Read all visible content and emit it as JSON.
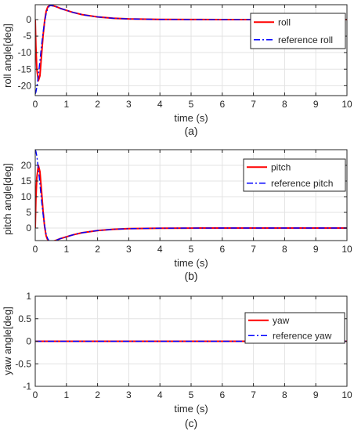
{
  "chart_data": [
    {
      "type": "line",
      "panel_label": "(a)",
      "xlabel": "time (s)",
      "ylabel": "roll angle[deg]",
      "xlim": [
        0,
        10
      ],
      "ylim": [
        -23,
        4.5
      ],
      "xticks": [
        0,
        1,
        2,
        3,
        4,
        5,
        6,
        7,
        8,
        9,
        10
      ],
      "yticks": [
        0,
        -5,
        -10,
        -15,
        -20
      ],
      "grid": true,
      "legend_position": "top-right",
      "series": [
        {
          "name": "roll",
          "style": "solid",
          "color": "#ff0000",
          "x": [
            0,
            0.02,
            0.05,
            0.1,
            0.15,
            0.2,
            0.25,
            0.3,
            0.35,
            0.4,
            0.45,
            0.5,
            0.55,
            0.6,
            0.7,
            0.8,
            1.0,
            1.2,
            1.5,
            2.0,
            2.5,
            3.0,
            4.0,
            5.0,
            6.0,
            7.0,
            8.0,
            9.0,
            10.0
          ],
          "y": [
            0,
            -8,
            -15,
            -18.5,
            -17,
            -11,
            -5,
            -0.5,
            2.5,
            3.8,
            4.2,
            4.3,
            4.2,
            4.1,
            3.8,
            3.4,
            2.8,
            2.2,
            1.5,
            0.8,
            0.4,
            0.2,
            0.05,
            0.02,
            0,
            0,
            0,
            0,
            0
          ]
        },
        {
          "name": "reference roll",
          "style": "dashdot",
          "color": "#0000ff",
          "x": [
            0,
            0.02,
            0.05,
            0.1,
            0.15,
            0.2,
            0.25,
            0.3,
            0.35,
            0.4,
            0.45,
            0.5,
            0.55,
            0.6,
            0.7,
            0.8,
            1.0,
            1.2,
            1.5,
            2.0,
            2.5,
            3.0,
            4.0,
            5.0,
            6.0,
            7.0,
            8.0,
            9.0,
            10.0
          ],
          "y": [
            -22.5,
            -22,
            -20.5,
            -17,
            -12.5,
            -8,
            -4,
            -0.8,
            1.8,
            3.3,
            4.1,
            4.3,
            4.2,
            4.1,
            3.8,
            3.4,
            2.8,
            2.2,
            1.5,
            0.8,
            0.4,
            0.2,
            0.05,
            0.02,
            0,
            0,
            0,
            0,
            0
          ]
        }
      ]
    },
    {
      "type": "line",
      "panel_label": "(b)",
      "xlabel": "time (s)",
      "ylabel": "pitch angle[deg]",
      "xlim": [
        0,
        10
      ],
      "ylim": [
        -4,
        25
      ],
      "xticks": [
        0,
        1,
        2,
        3,
        4,
        5,
        6,
        7,
        8,
        9,
        10
      ],
      "yticks": [
        20,
        15,
        10,
        5,
        0
      ],
      "grid": true,
      "legend_position": "top-right",
      "series": [
        {
          "name": "pitch",
          "style": "solid",
          "color": "#ff0000",
          "x": [
            0,
            0.02,
            0.05,
            0.1,
            0.15,
            0.2,
            0.25,
            0.3,
            0.35,
            0.4,
            0.45,
            0.5,
            0.55,
            0.6,
            0.7,
            0.8,
            1.0,
            1.2,
            1.5,
            2.0,
            2.5,
            3.0,
            4.0,
            5.0,
            6.0,
            7.0,
            8.0,
            9.0,
            10.0
          ],
          "y": [
            0,
            9,
            16,
            20,
            18,
            12,
            5.5,
            0.5,
            -2.5,
            -3.8,
            -4.2,
            -4.3,
            -4.2,
            -4.1,
            -3.8,
            -3.4,
            -2.8,
            -2.2,
            -1.5,
            -0.8,
            -0.4,
            -0.2,
            -0.05,
            -0.02,
            0,
            0,
            0,
            0,
            0
          ]
        },
        {
          "name": "reference pitch",
          "style": "dashdot",
          "color": "#0000ff",
          "x": [
            0,
            0.02,
            0.05,
            0.1,
            0.15,
            0.2,
            0.25,
            0.3,
            0.35,
            0.4,
            0.45,
            0.5,
            0.55,
            0.6,
            0.7,
            0.8,
            1.0,
            1.2,
            1.5,
            2.0,
            2.5,
            3.0,
            4.0,
            5.0,
            6.0,
            7.0,
            8.0,
            9.0,
            10.0
          ],
          "y": [
            25,
            24.5,
            23,
            19,
            14,
            9,
            4.5,
            0.8,
            -2,
            -3.4,
            -4.1,
            -4.3,
            -4.2,
            -4.1,
            -3.8,
            -3.4,
            -2.8,
            -2.2,
            -1.5,
            -0.8,
            -0.4,
            -0.2,
            -0.05,
            -0.02,
            0,
            0,
            0,
            0,
            0
          ]
        }
      ]
    },
    {
      "type": "line",
      "panel_label": "(c)",
      "xlabel": "time (s)",
      "ylabel": "yaw angle[deg]",
      "xlim": [
        0,
        10
      ],
      "ylim": [
        -1,
        1
      ],
      "xticks": [
        0,
        1,
        2,
        3,
        4,
        5,
        6,
        7,
        8,
        9,
        10
      ],
      "yticks": [
        1,
        0.5,
        0,
        -0.5,
        -1
      ],
      "grid": true,
      "legend_position": "top-right",
      "series": [
        {
          "name": "yaw",
          "style": "solid",
          "color": "#ff0000",
          "x": [
            0,
            10
          ],
          "y": [
            0,
            0
          ]
        },
        {
          "name": "reference yaw",
          "style": "dashdot",
          "color": "#0000ff",
          "x": [
            0,
            10
          ],
          "y": [
            0,
            0
          ]
        }
      ]
    }
  ]
}
